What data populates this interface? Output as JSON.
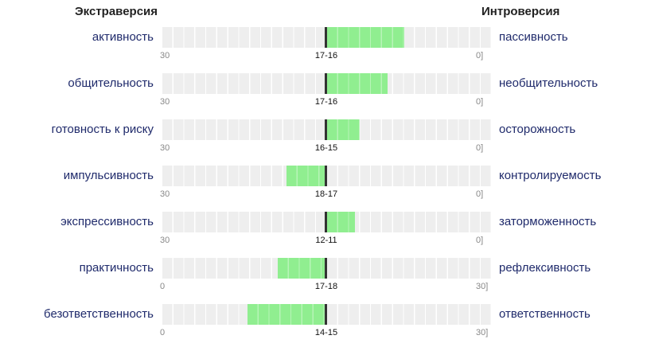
{
  "header": {
    "left": "Экстраверсия",
    "right": "Интроверсия"
  },
  "colors": {
    "fill": "#90ee90",
    "track": "#eeeeee",
    "score": "#1a1ad6",
    "label": "#1f2a6b"
  },
  "scales": [
    {
      "left": "активность",
      "score": "9",
      "right": "пассивность",
      "tick_left": "30",
      "tick_right": "0]",
      "range": "17-16",
      "fill_direction": "right",
      "fill_segments": 7
    },
    {
      "left": "общительность",
      "score": "11",
      "right": "необщительность",
      "tick_left": "30",
      "tick_right": "0]",
      "range": "17-16",
      "fill_direction": "right",
      "fill_segments": 5.5
    },
    {
      "left": "готовность к риску",
      "score": "13",
      "right": "осторожность",
      "tick_left": "30",
      "tick_right": "0]",
      "range": "16-15",
      "fill_direction": "right",
      "fill_segments": 3
    },
    {
      "left": "импульсивность",
      "score": "20",
      "right": "контролируемость",
      "tick_left": "30",
      "tick_right": "0]",
      "range": "18-17",
      "fill_direction": "left",
      "fill_segments": 3.5
    },
    {
      "left": "экспрессивность",
      "score": "10",
      "right": "заторможенность",
      "tick_left": "30",
      "tick_right": "0]",
      "range": "12-11",
      "fill_direction": "right",
      "fill_segments": 2.5
    },
    {
      "left": "практичность",
      "score": "13",
      "right": "рефлексивность",
      "tick_left": "0",
      "tick_right": "30]",
      "range": "17-18",
      "fill_direction": "left",
      "fill_segments": 4.3
    },
    {
      "left": "безответственность",
      "score": "8",
      "right": "ответственность",
      "tick_left": "0",
      "tick_right": "30]",
      "range": "14-15",
      "fill_direction": "left",
      "fill_segments": 7
    }
  ]
}
